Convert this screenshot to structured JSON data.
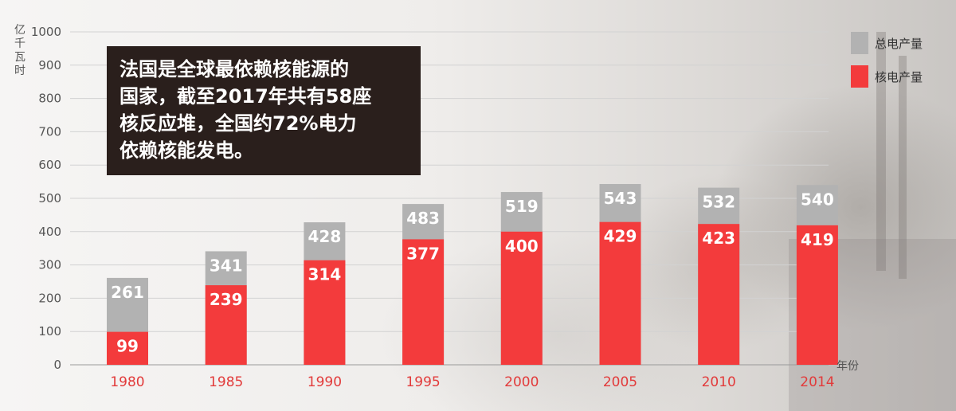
{
  "chart_data": {
    "type": "bar",
    "stacked": false,
    "overlapped": true,
    "categories": [
      "1980",
      "1985",
      "1990",
      "1995",
      "2000",
      "2005",
      "2010",
      "2014"
    ],
    "series": [
      {
        "name": "总电产量",
        "values": [
          261,
          341,
          428,
          483,
          519,
          543,
          532,
          540
        ],
        "color": "#b2b2b2"
      },
      {
        "name": "核电产量",
        "values": [
          99,
          239,
          314,
          377,
          400,
          429,
          423,
          419
        ],
        "color": "#f33b3c"
      }
    ],
    "ylabel": "亿千瓦时",
    "xlabel": "年份",
    "ylim": [
      0,
      1000
    ],
    "yticks": [
      0,
      100,
      200,
      300,
      400,
      500,
      600,
      700,
      800,
      900,
      1000
    ],
    "grid": true,
    "legend_position": "top-right",
    "annotation": [
      "法国是全球最依赖核能源的",
      "国家，截至2017年共有58座",
      "核反应堆，全国约72%电力",
      "依赖核能发电。"
    ]
  }
}
